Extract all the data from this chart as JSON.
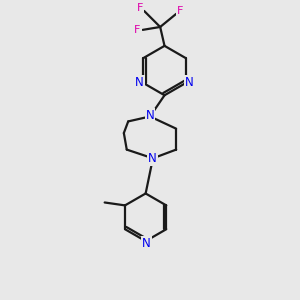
{
  "background_color": "#e8e8e8",
  "bond_color": "#1a1a1a",
  "nitrogen_color": "#0000ee",
  "fluorine_color": "#dd00aa",
  "line_width": 1.6,
  "figsize": [
    3.0,
    3.0
  ],
  "dpi": 100,
  "xlim": [
    0,
    10
  ],
  "ylim": [
    0,
    10
  ]
}
